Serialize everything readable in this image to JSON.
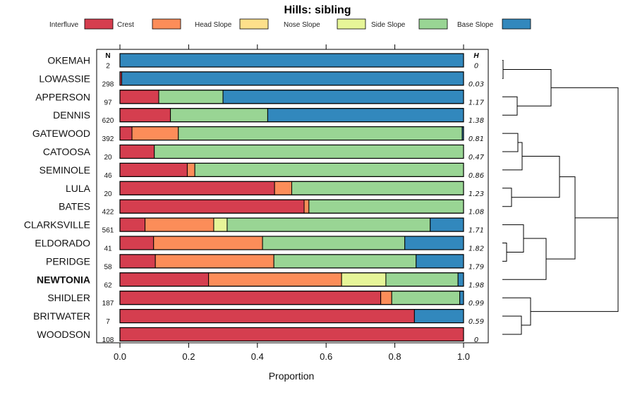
{
  "chart_data": {
    "type": "bar",
    "stacked": true,
    "orientation": "horizontal",
    "title": "Hills: sibling",
    "xlabel": "Proportion",
    "ylabel": "",
    "xlim": [
      0,
      1
    ],
    "xticks": [
      "0.0",
      "0.2",
      "0.4",
      "0.6",
      "0.8",
      "1.0"
    ],
    "n_header": "N",
    "h_header": "H",
    "legend_position": "top",
    "highlight": "NEWTONIA",
    "series": [
      {
        "name": "Interfluve",
        "color": "#D53E4F"
      },
      {
        "name": "Crest",
        "color": "#FC8D59"
      },
      {
        "name": "Head Slope",
        "color": "#FEE08B"
      },
      {
        "name": "Nose Slope",
        "color": "#E6F598"
      },
      {
        "name": "Side Slope",
        "color": "#99D594"
      },
      {
        "name": "Base Slope",
        "color": "#3288BD"
      }
    ],
    "rows": [
      {
        "name": "OKEMAH",
        "n": "2",
        "h": "0",
        "values": [
          0,
          0,
          0,
          0,
          0,
          1.0
        ]
      },
      {
        "name": "LOWASSIE",
        "n": "298",
        "h": "0.03",
        "values": [
          0.005,
          0,
          0,
          0,
          0,
          0.995
        ]
      },
      {
        "name": "APPERSON",
        "n": "97",
        "h": "1.17",
        "values": [
          0.113,
          0,
          0,
          0,
          0.187,
          0.7
        ]
      },
      {
        "name": "DENNIS",
        "n": "620",
        "h": "1.38",
        "values": [
          0.147,
          0,
          0,
          0,
          0.283,
          0.57
        ]
      },
      {
        "name": "GATEWOOD",
        "n": "392",
        "h": "0.81",
        "values": [
          0.035,
          0.135,
          0,
          0,
          0.826,
          0.004
        ]
      },
      {
        "name": "CATOOSA",
        "n": "20",
        "h": "0.47",
        "values": [
          0.1,
          0,
          0,
          0,
          0.9,
          0
        ]
      },
      {
        "name": "SEMINOLE",
        "n": "46",
        "h": "0.86",
        "values": [
          0.196,
          0.022,
          0,
          0,
          0.782,
          0
        ]
      },
      {
        "name": "LULA",
        "n": "20",
        "h": "1.23",
        "values": [
          0.45,
          0.05,
          0,
          0,
          0.5,
          0
        ]
      },
      {
        "name": "BATES",
        "n": "422",
        "h": "1.08",
        "values": [
          0.536,
          0.014,
          0,
          0,
          0.45,
          0
        ]
      },
      {
        "name": "CLARKSVILLE",
        "n": "561",
        "h": "1.71",
        "values": [
          0.073,
          0.2,
          0,
          0.039,
          0.591,
          0.097
        ]
      },
      {
        "name": "ELDORADO",
        "n": "41",
        "h": "1.82",
        "values": [
          0.098,
          0.317,
          0,
          0,
          0.414,
          0.171
        ]
      },
      {
        "name": "PERIDGE",
        "n": "58",
        "h": "1.79",
        "values": [
          0.103,
          0.345,
          0,
          0,
          0.414,
          0.138
        ]
      },
      {
        "name": "NEWTONIA",
        "n": "62",
        "h": "1.98",
        "values": [
          0.258,
          0.387,
          0,
          0.129,
          0.21,
          0.016
        ]
      },
      {
        "name": "SHIDLER",
        "n": "187",
        "h": "0.99",
        "values": [
          0.759,
          0.032,
          0,
          0,
          0.198,
          0.011
        ]
      },
      {
        "name": "BRITWATER",
        "n": "7",
        "h": "0.59",
        "values": [
          0.857,
          0,
          0,
          0,
          0,
          0.143
        ]
      },
      {
        "name": "WOODSON",
        "n": "108",
        "h": "0",
        "values": [
          1.0,
          0,
          0,
          0,
          0,
          0
        ]
      }
    ]
  }
}
